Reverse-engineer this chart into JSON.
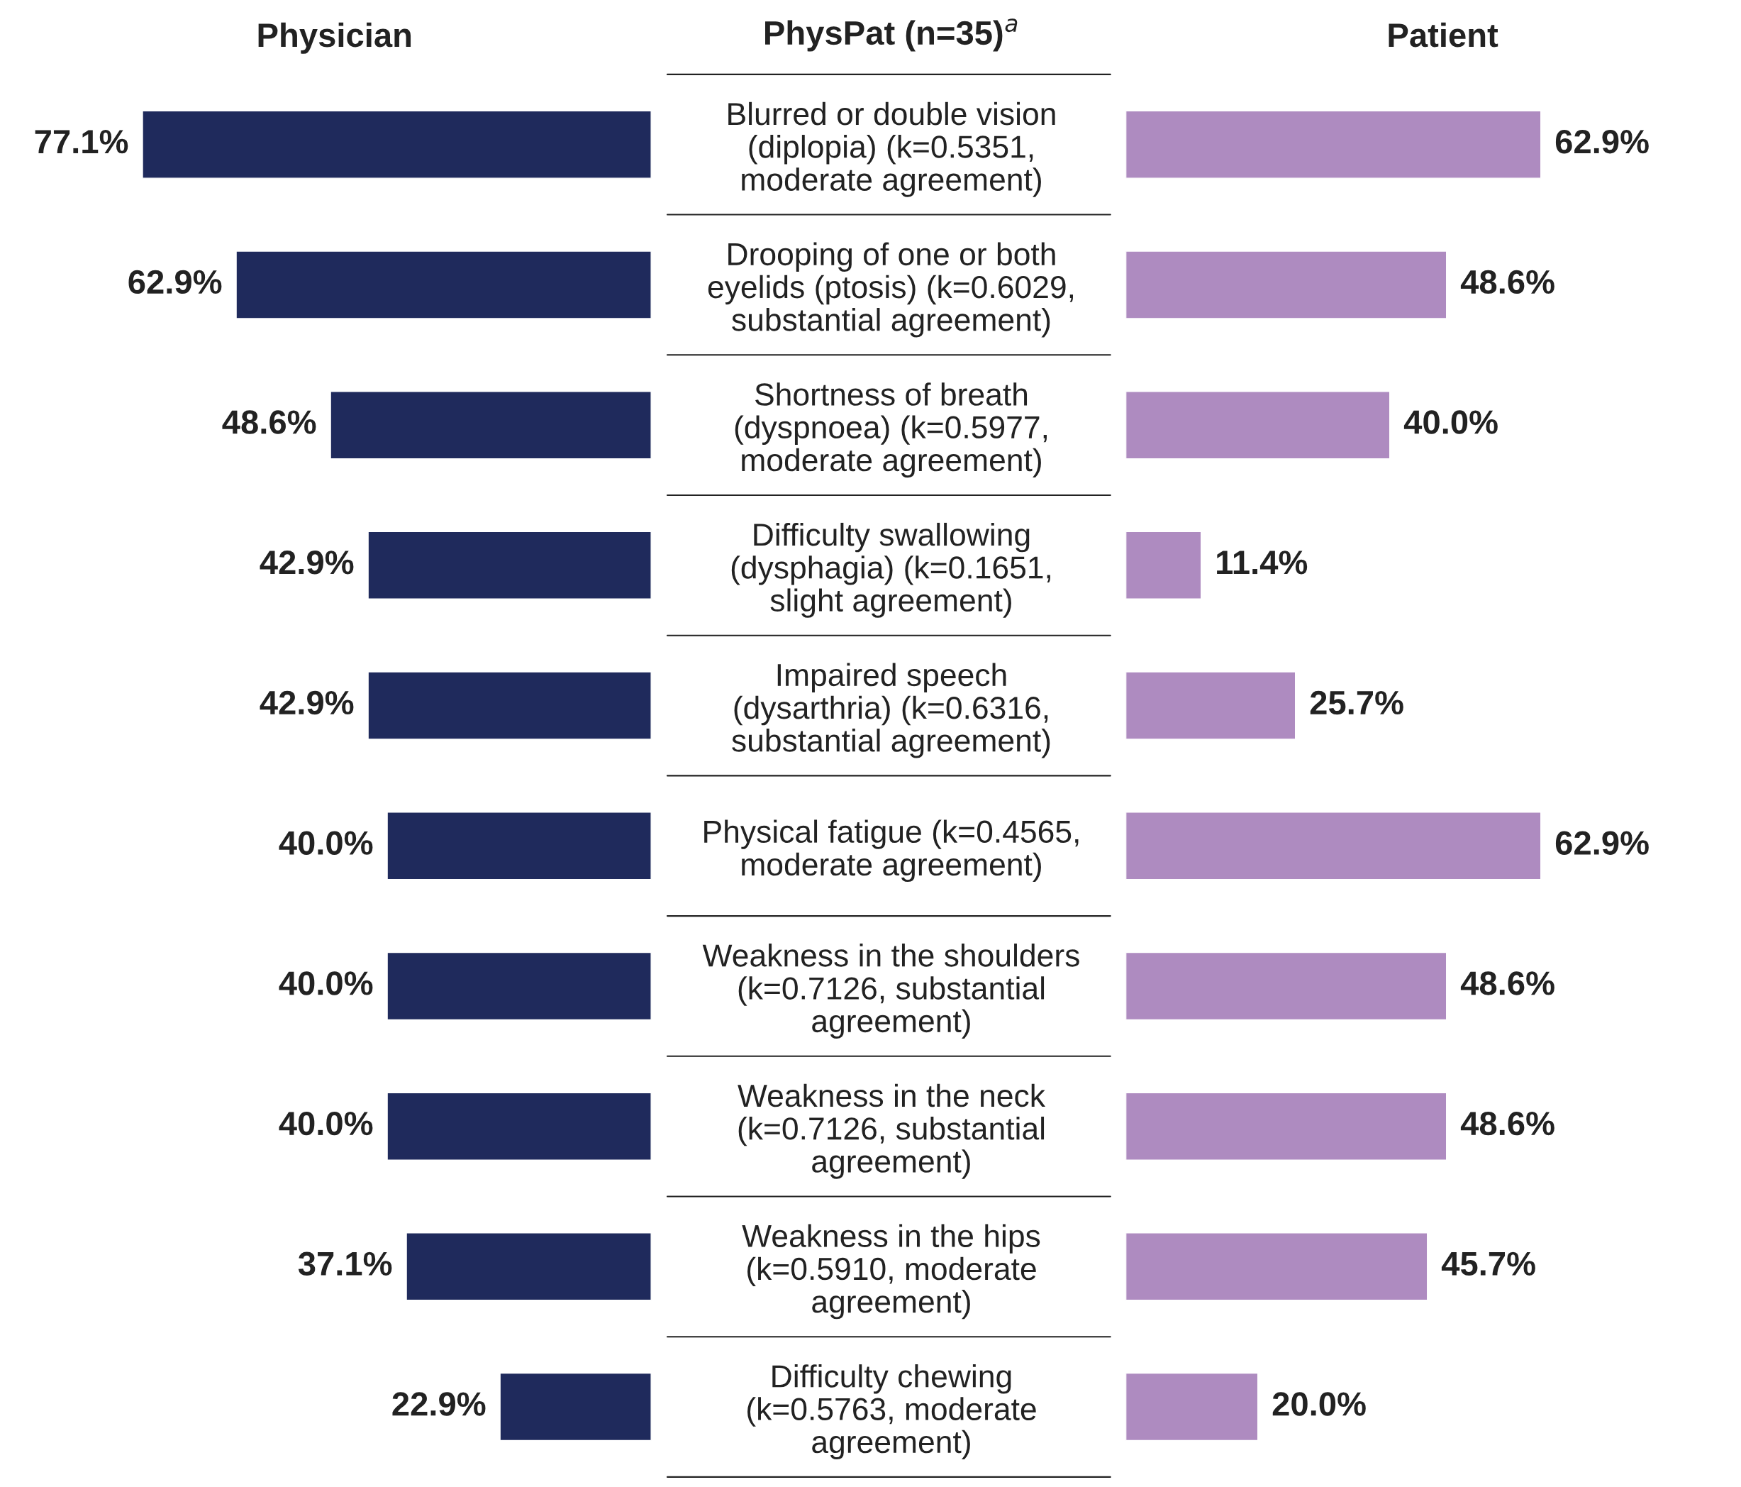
{
  "chart_data": [
    {
      "type": "bar",
      "orientation": "horizontal",
      "title": "Physician",
      "ylabel": "PhysPat (n=35)$^{a}$",
      "tick_labels": "y",
      "categories": [
        "Blurred or double vision\n(diplopia) (k=0.5351,\nmoderate agreement)",
        "Drooping of one or both\neyelids (ptosis) (k=0.6029,\nsubstantial agreement)",
        "Shortness of breath\n(dyspnoea) (k=0.5977,\nmoderate agreement)",
        "Difficulty swallowing\n(dysphagia) (k=0.1651,\nslight agreement)",
        "Impaired speech\n(dysarthria) (k=0.6316,\nsubstantial agreement)",
        "Physical fatigue (k=0.4565,\nmoderate agreement)",
        "Weakness in the shoulders\n(k=0.7126, substantial\nagreement)",
        "Weakness in the neck\n(k=0.7126, substantial\nagreement)",
        "Weakness in the hips\n(k=0.5910, moderate\nagreement)",
        "Difficulty chewing\n(k=0.5763, moderate\nagreement)"
      ],
      "color": "#1f2a5c",
      "values": [
        77.1,
        62.9,
        48.6,
        42.9,
        42.9,
        40.0,
        40.0,
        40.0,
        37.1,
        22.9
      ],
      "value_labels": [
        "77.1%",
        "62.9%",
        "48.6%",
        "42.9%",
        "42.9%",
        "40.0%",
        "40.0%",
        "40.0%",
        "37.1%",
        "22.9%"
      ]
    },
    {
      "type": "bar",
      "orientation": "horizontal",
      "title": "Patient",
      "categories": [
        null,
        null,
        null,
        null,
        null,
        null,
        null,
        null,
        null,
        null
      ],
      "color": "#ae8bc0",
      "values": [
        62.9,
        48.6,
        40.0,
        11.4,
        25.7,
        62.9,
        48.6,
        48.6,
        45.7,
        20.0
      ],
      "value_labels": [
        "62.9%",
        "48.6%",
        "40.0%",
        "11.4%",
        "25.7%",
        "62.9%",
        "48.6%",
        "48.6%",
        "45.7%",
        "20.0%"
      ]
    }
  ]
}
